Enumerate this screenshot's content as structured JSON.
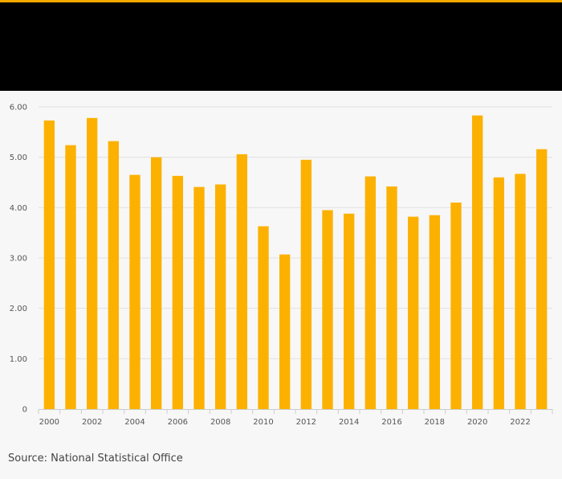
{
  "colors": {
    "accent": "#f5a800",
    "bar": "#fcb100",
    "header_band": "#000000",
    "background": "#f7f7f7"
  },
  "chart_data": {
    "type": "bar",
    "categories": [
      "2000",
      "2001",
      "2002",
      "2003",
      "2004",
      "2005",
      "2006",
      "2007",
      "2008",
      "2009",
      "2010",
      "2011",
      "2012",
      "2013",
      "2014",
      "2015",
      "2016",
      "2017",
      "2018",
      "2019",
      "2020",
      "2021",
      "2022",
      "2023"
    ],
    "x_tick_labels": [
      "2000",
      "2002",
      "2004",
      "2006",
      "2008",
      "2010",
      "2012",
      "2014",
      "2016",
      "2018",
      "2020",
      "2022"
    ],
    "values": [
      5.73,
      5.24,
      5.78,
      5.32,
      4.65,
      5.0,
      4.63,
      4.41,
      4.46,
      5.06,
      3.63,
      3.07,
      4.95,
      3.95,
      3.88,
      4.62,
      4.42,
      3.82,
      3.85,
      4.1,
      5.83,
      4.6,
      4.67,
      5.16
    ],
    "y_ticks": [
      "0",
      "1.00",
      "2.00",
      "3.00",
      "4.00",
      "5.00",
      "6.00"
    ],
    "ylim": [
      0,
      6
    ],
    "grid": true,
    "legend": "none",
    "title": "",
    "xlabel": "",
    "ylabel": ""
  },
  "footer": {
    "source": "Source: National Statistical Office"
  }
}
